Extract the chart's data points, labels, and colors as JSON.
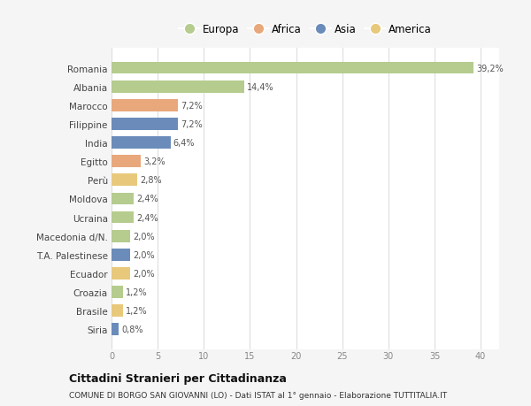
{
  "categories": [
    "Romania",
    "Albania",
    "Marocco",
    "Filippine",
    "India",
    "Egitto",
    "Perù",
    "Moldova",
    "Ucraina",
    "Macedonia d/N.",
    "T.A. Palestinese",
    "Ecuador",
    "Croazia",
    "Brasile",
    "Siria"
  ],
  "values": [
    39.2,
    14.4,
    7.2,
    7.2,
    6.4,
    3.2,
    2.8,
    2.4,
    2.4,
    2.0,
    2.0,
    2.0,
    1.2,
    1.2,
    0.8
  ],
  "labels": [
    "39,2%",
    "14,4%",
    "7,2%",
    "7,2%",
    "6,4%",
    "3,2%",
    "2,8%",
    "2,4%",
    "2,4%",
    "2,0%",
    "2,0%",
    "2,0%",
    "1,2%",
    "1,2%",
    "0,8%"
  ],
  "colors": [
    "#b5cc8e",
    "#b5cc8e",
    "#e8a87c",
    "#6b8cba",
    "#6b8cba",
    "#e8a87c",
    "#e8c97c",
    "#b5cc8e",
    "#b5cc8e",
    "#b5cc8e",
    "#6b8cba",
    "#e8c97c",
    "#b5cc8e",
    "#e8c97c",
    "#6b8cba"
  ],
  "continent_legend": [
    {
      "label": "Europa",
      "color": "#b5cc8e"
    },
    {
      "label": "Africa",
      "color": "#e8a87c"
    },
    {
      "label": "Asia",
      "color": "#6b8cba"
    },
    {
      "label": "America",
      "color": "#e8c97c"
    }
  ],
  "xlim": [
    0,
    42
  ],
  "xticks": [
    0,
    5,
    10,
    15,
    20,
    25,
    30,
    35,
    40
  ],
  "title": "Cittadini Stranieri per Cittadinanza",
  "subtitle": "COMUNE DI BORGO SAN GIOVANNI (LO) - Dati ISTAT al 1° gennaio - Elaborazione TUTTITALIA.IT",
  "background_color": "#f5f5f5",
  "bar_background": "#ffffff",
  "grid_color": "#dddddd"
}
